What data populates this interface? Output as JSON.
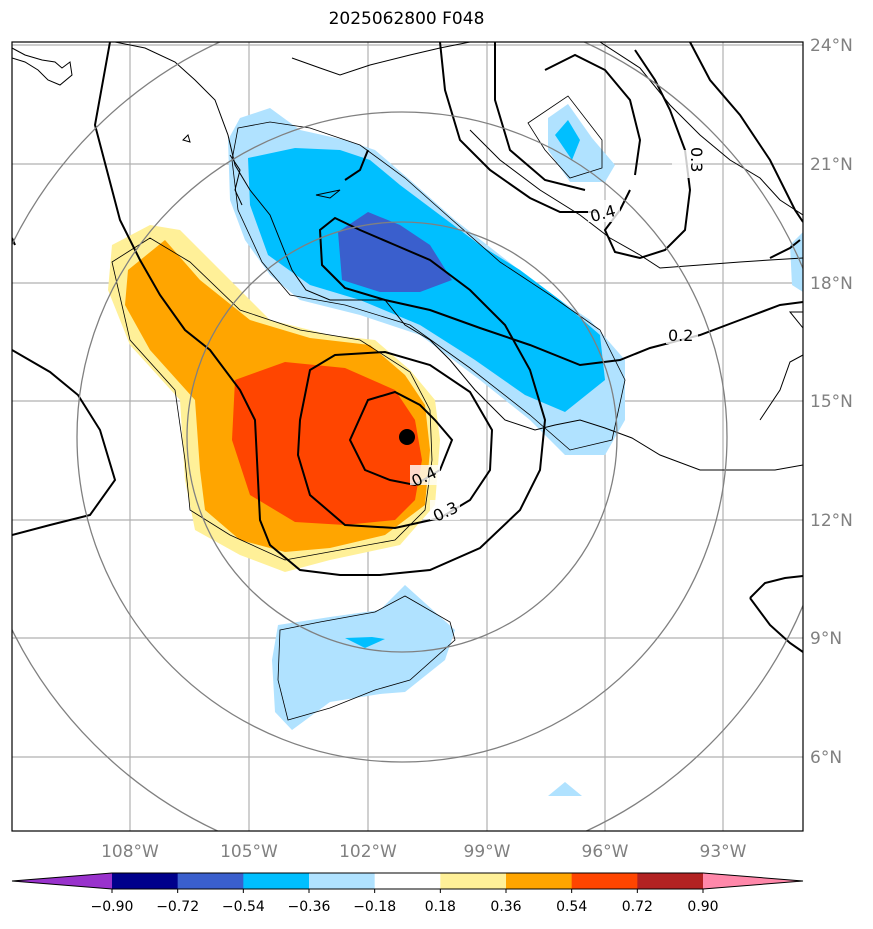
{
  "title": "2025062800 F048",
  "map": {
    "lon_range": [
      -111,
      -91.667
    ],
    "lat_range": [
      4.2,
      24.0
    ],
    "lon_ticks": [
      "108°W",
      "105°W",
      "102°W",
      "99°W",
      "96°W",
      "93°W"
    ],
    "lat_ticks": [
      "24°N",
      "21°N",
      "18°N",
      "15°N",
      "12°N",
      "9°N",
      "6°N"
    ],
    "storm_center": {
      "lon": -101.0,
      "lat": 14.1
    },
    "contour_labels": [
      "0.4",
      "0.3",
      "0.2",
      "0.3",
      "0.4"
    ],
    "grid_color": "#b0b0b0",
    "range_ring_color": "#808080"
  },
  "colorbar": {
    "ticks": [
      "−0.90",
      "−0.72",
      "−0.54",
      "−0.36",
      "−0.18",
      "0.18",
      "0.36",
      "0.54",
      "0.72",
      "0.90"
    ],
    "colors": [
      "#9932cc",
      "#00008b",
      "#3a5fcd",
      "#00bfff",
      "#b0e2ff",
      "#ffffff",
      "#fff098",
      "#ffa500",
      "#ff4500",
      "#b22222",
      "#ff88aa"
    ]
  }
}
